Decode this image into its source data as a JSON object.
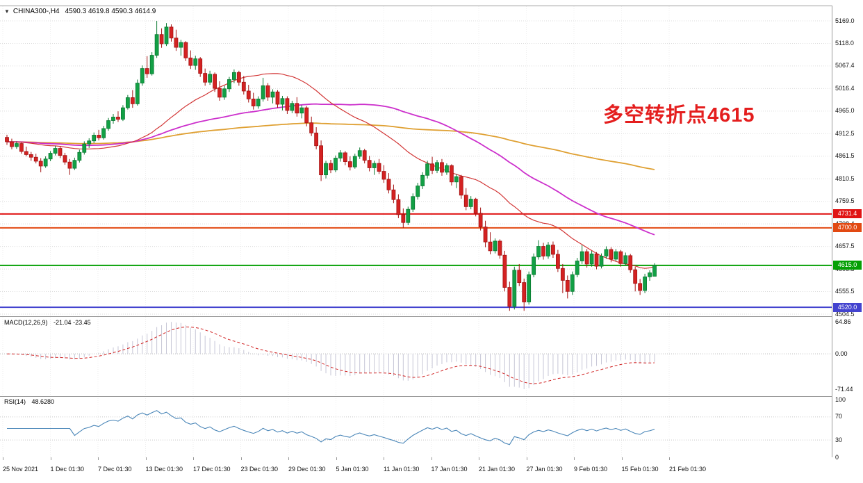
{
  "header": {
    "collapse_icon": "▼",
    "symbol_period": "CHINA300-,H4",
    "ohlc_text": "4590.3 4619.8 4590.3 4614.9"
  },
  "annotation": {
    "text": "多空转折点4615",
    "color": "#e41e1e"
  },
  "price_scale": {
    "labels": [
      "5169.0",
      "5118.0",
      "5067.4",
      "5016.4",
      "4965.0",
      "4912.5",
      "4861.5",
      "4810.5",
      "4759.5",
      "4708.4",
      "4657.5",
      "4606.5",
      "4555.5",
      "4504.5"
    ]
  },
  "macd_panel": {
    "name": "MACD(12,26,9)",
    "values": "-21.04 -23.45",
    "scale_labels": [
      "64.86",
      "0.00",
      "-71.44"
    ]
  },
  "rsi_panel": {
    "name": "RSI(14)",
    "value": "48.6280",
    "scale_labels": [
      "100",
      "70",
      "30",
      "0"
    ]
  },
  "time_axis": {
    "labels": [
      "25 Nov 2021",
      "1 Dec 01:30",
      "7 Dec 01:30",
      "13 Dec 01:30",
      "17 Dec 01:30",
      "23 Dec 01:30",
      "29 Dec 01:30",
      "5 Jan 01:30",
      "11 Jan 01:30",
      "17 Jan 01:30",
      "21 Jan 01:30",
      "27 Jan 01:30",
      "9 Feb 01:30",
      "15 Feb 01:30",
      "21 Feb 01:30"
    ]
  },
  "chart_data": {
    "type": "candlestick",
    "symbol": "CHINA300-",
    "timeframe": "H4",
    "last_ohlc": {
      "open": 4590.3,
      "high": 4619.8,
      "low": 4590.3,
      "close": 4614.9
    },
    "ylim": [
      4504.5,
      5169.0
    ],
    "colors": {
      "up": "#12a045",
      "up_border": "#0b7a32",
      "down": "#d42222",
      "down_border": "#a31212"
    },
    "hlines": [
      {
        "value": 4731.4,
        "label": "4731.4",
        "color": "#e01414"
      },
      {
        "value": 4700.0,
        "label": "4700.0",
        "color": "#e24912"
      },
      {
        "value": 4615.0,
        "label": "4615.0",
        "color": "#05a005"
      },
      {
        "value": 4520.0,
        "label": "4520.0",
        "color": "#4343cf"
      }
    ],
    "overlays": [
      {
        "name": "ma-fast",
        "type": "sma",
        "period": 30,
        "color": "#d23535",
        "width": 1.2
      },
      {
        "name": "ma-mid",
        "type": "sma",
        "period": 60,
        "color": "#cc2fcc",
        "width": 1.8
      },
      {
        "name": "ma-slow",
        "type": "sma",
        "period": 120,
        "color": "#dfa032",
        "width": 1.8
      }
    ],
    "indicators": [
      {
        "type": "macd",
        "fast": 12,
        "slow": 26,
        "signal": 9,
        "current_main": -21.04,
        "current_signal": -23.45,
        "scale": {
          "max": 64.86,
          "zero": 0.0,
          "min": -71.44
        },
        "histogram_color": "#c6c6d6",
        "signal_color": "#d02020"
      },
      {
        "type": "rsi",
        "period": 14,
        "current": 48.628,
        "levels": [
          70,
          30
        ],
        "line_color": "#4a86b8"
      }
    ],
    "x_labels": [
      "25 Nov 2021",
      "1 Dec 01:30",
      "7 Dec 01:30",
      "13 Dec 01:30",
      "17 Dec 01:30",
      "23 Dec 01:30",
      "29 Dec 01:30",
      "5 Jan 01:30",
      "11 Jan 01:30",
      "17 Jan 01:30",
      "21 Jan 01:30",
      "27 Jan 01:30",
      "9 Feb 01:30",
      "15 Feb 01:30",
      "21 Feb 01:30"
    ],
    "candles_ohlc": [
      [
        4905,
        4911,
        4888,
        4895
      ],
      [
        4895,
        4902,
        4878,
        4884
      ],
      [
        4884,
        4896,
        4879,
        4891
      ],
      [
        4891,
        4893,
        4868,
        4873
      ],
      [
        4873,
        4884,
        4862,
        4866
      ],
      [
        4866,
        4872,
        4852,
        4860
      ],
      [
        4860,
        4868,
        4846,
        4851
      ],
      [
        4851,
        4858,
        4826,
        4840
      ],
      [
        4840,
        4862,
        4836,
        4856
      ],
      [
        4856,
        4874,
        4851,
        4869
      ],
      [
        4869,
        4886,
        4864,
        4880
      ],
      [
        4880,
        4885,
        4858,
        4864
      ],
      [
        4864,
        4870,
        4843,
        4849
      ],
      [
        4849,
        4856,
        4820,
        4835
      ],
      [
        4835,
        4859,
        4831,
        4853
      ],
      [
        4853,
        4877,
        4848,
        4871
      ],
      [
        4871,
        4896,
        4866,
        4890
      ],
      [
        4890,
        4903,
        4881,
        4897
      ],
      [
        4897,
        4916,
        4892,
        4910
      ],
      [
        4910,
        4922,
        4898,
        4904
      ],
      [
        4904,
        4931,
        4900,
        4925
      ],
      [
        4925,
        4949,
        4920,
        4943
      ],
      [
        4943,
        4958,
        4936,
        4951
      ],
      [
        4951,
        4964,
        4940,
        4946
      ],
      [
        4946,
        4978,
        4942,
        4972
      ],
      [
        4972,
        5001,
        4968,
        4995
      ],
      [
        4995,
        5012,
        4972,
        4981
      ],
      [
        4981,
        5036,
        4977,
        5028
      ],
      [
        5028,
        5068,
        5022,
        5061
      ],
      [
        5061,
        5089,
        5040,
        5049
      ],
      [
        5049,
        5098,
        5045,
        5091
      ],
      [
        5091,
        5169,
        5085,
        5138
      ],
      [
        5138,
        5152,
        5108,
        5117
      ],
      [
        5117,
        5164,
        5112,
        5155
      ],
      [
        5155,
        5161,
        5122,
        5130
      ],
      [
        5130,
        5149,
        5101,
        5109
      ],
      [
        5109,
        5126,
        5090,
        5120
      ],
      [
        5120,
        5123,
        5078,
        5085
      ],
      [
        5085,
        5102,
        5060,
        5068
      ],
      [
        5068,
        5090,
        5058,
        5083
      ],
      [
        5083,
        5087,
        5042,
        5050
      ],
      [
        5050,
        5061,
        5022,
        5030
      ],
      [
        5030,
        5056,
        5024,
        5048
      ],
      [
        5048,
        5052,
        5008,
        5016
      ],
      [
        5016,
        5032,
        4988,
        4996
      ],
      [
        4996,
        5022,
        4990,
        5015
      ],
      [
        5015,
        5042,
        5008,
        5036
      ],
      [
        5036,
        5059,
        5028,
        5052
      ],
      [
        5052,
        5056,
        5022,
        5030
      ],
      [
        5030,
        5044,
        5002,
        5010
      ],
      [
        5010,
        5024,
        4984,
        4992
      ],
      [
        4992,
        5006,
        4968,
        4976
      ],
      [
        4976,
        4998,
        4970,
        4992
      ],
      [
        4992,
        5040,
        4986,
        5022
      ],
      [
        5022,
        5028,
        4988,
        4996
      ],
      [
        4996,
        5014,
        4982,
        5008
      ],
      [
        5008,
        5012,
        4972,
        4980
      ],
      [
        4980,
        4999,
        4966,
        4993
      ],
      [
        4993,
        4998,
        4958,
        4966
      ],
      [
        4966,
        4988,
        4960,
        4982
      ],
      [
        4982,
        4996,
        4952,
        4960
      ],
      [
        4960,
        4978,
        4948,
        4972
      ],
      [
        4972,
        4976,
        4930,
        4938
      ],
      [
        4938,
        4952,
        4908,
        4915
      ],
      [
        4915,
        4928,
        4878,
        4886
      ],
      [
        4886,
        4898,
        4806,
        4820
      ],
      [
        4820,
        4852,
        4812,
        4846
      ],
      [
        4846,
        4854,
        4824,
        4831
      ],
      [
        4831,
        4864,
        4826,
        4858
      ],
      [
        4858,
        4876,
        4850,
        4870
      ],
      [
        4870,
        4874,
        4842,
        4850
      ],
      [
        4850,
        4862,
        4830,
        4838
      ],
      [
        4838,
        4868,
        4834,
        4862
      ],
      [
        4862,
        4882,
        4856,
        4875
      ],
      [
        4875,
        4879,
        4846,
        4853
      ],
      [
        4853,
        4863,
        4828,
        4836
      ],
      [
        4836,
        4852,
        4820,
        4846
      ],
      [
        4846,
        4856,
        4822,
        4828
      ],
      [
        4828,
        4842,
        4802,
        4810
      ],
      [
        4810,
        4824,
        4778,
        4786
      ],
      [
        4786,
        4798,
        4756,
        4764
      ],
      [
        4764,
        4776,
        4722,
        4730
      ],
      [
        4730,
        4744,
        4700,
        4712
      ],
      [
        4712,
        4748,
        4706,
        4742
      ],
      [
        4742,
        4778,
        4736,
        4771
      ],
      [
        4771,
        4802,
        4764,
        4795
      ],
      [
        4795,
        4826,
        4788,
        4819
      ],
      [
        4819,
        4852,
        4812,
        4845
      ],
      [
        4845,
        4861,
        4822,
        4830
      ],
      [
        4830,
        4854,
        4824,
        4848
      ],
      [
        4848,
        4856,
        4818,
        4826
      ],
      [
        4826,
        4846,
        4820,
        4841
      ],
      [
        4841,
        4844,
        4796,
        4804
      ],
      [
        4804,
        4822,
        4790,
        4816
      ],
      [
        4816,
        4820,
        4766,
        4774
      ],
      [
        4774,
        4790,
        4740,
        4748
      ],
      [
        4748,
        4772,
        4742,
        4765
      ],
      [
        4765,
        4768,
        4726,
        4733
      ],
      [
        4733,
        4746,
        4694,
        4702
      ],
      [
        4702,
        4716,
        4656,
        4668
      ],
      [
        4668,
        4690,
        4640,
        4648
      ],
      [
        4648,
        4676,
        4642,
        4670
      ],
      [
        4670,
        4674,
        4630,
        4638
      ],
      [
        4638,
        4648,
        4556,
        4565
      ],
      [
        4565,
        4578,
        4512,
        4522
      ],
      [
        4522,
        4612,
        4515,
        4604
      ],
      [
        4604,
        4618,
        4568,
        4576
      ],
      [
        4576,
        4585,
        4512,
        4532
      ],
      [
        4532,
        4601,
        4526,
        4594
      ],
      [
        4594,
        4642,
        4588,
        4634
      ],
      [
        4634,
        4672,
        4628,
        4658
      ],
      [
        4658,
        4666,
        4628,
        4636
      ],
      [
        4636,
        4668,
        4630,
        4661
      ],
      [
        4661,
        4669,
        4632,
        4640
      ],
      [
        4640,
        4650,
        4600,
        4608
      ],
      [
        4608,
        4618,
        4552,
        4581
      ],
      [
        4581,
        4592,
        4540,
        4556
      ],
      [
        4556,
        4601,
        4548,
        4594
      ],
      [
        4594,
        4632,
        4588,
        4625
      ],
      [
        4625,
        4661,
        4618,
        4646
      ],
      [
        4646,
        4652,
        4610,
        4618
      ],
      [
        4618,
        4648,
        4612,
        4641
      ],
      [
        4641,
        4645,
        4606,
        4613
      ],
      [
        4613,
        4642,
        4608,
        4636
      ],
      [
        4636,
        4658,
        4630,
        4651
      ],
      [
        4651,
        4656,
        4622,
        4629
      ],
      [
        4629,
        4652,
        4624,
        4646
      ],
      [
        4646,
        4650,
        4612,
        4619
      ],
      [
        4619,
        4644,
        4614,
        4637
      ],
      [
        4637,
        4641,
        4598,
        4605
      ],
      [
        4605,
        4612,
        4556,
        4574
      ],
      [
        4574,
        4584,
        4548,
        4558
      ],
      [
        4558,
        4596,
        4552,
        4589
      ],
      [
        4589,
        4604,
        4580,
        4598
      ],
      [
        4590.3,
        4619.8,
        4590.3,
        4614.9
      ]
    ]
  }
}
